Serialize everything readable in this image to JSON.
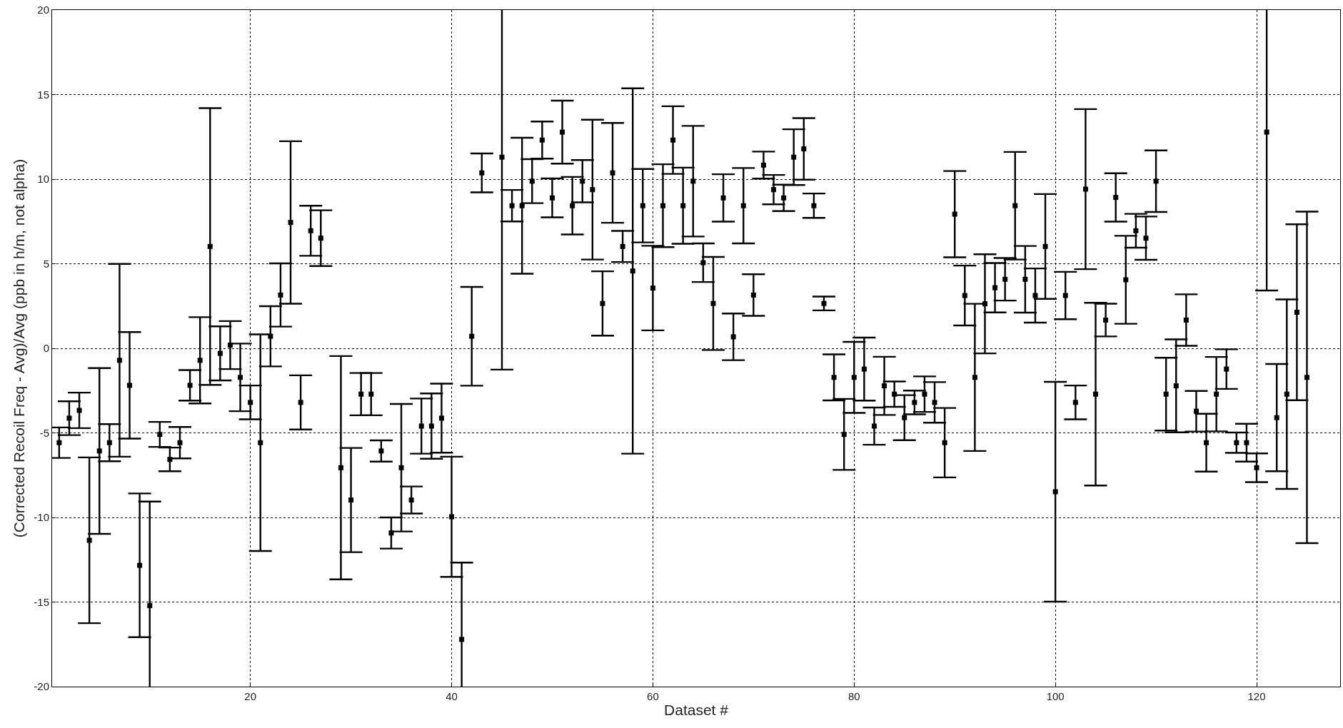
{
  "chart_data": {
    "type": "scatter",
    "xlabel": "Dataset #",
    "ylabel": "(Corrected Recoil Freq - Avg)/Avg (ppb in h/m, not alpha)",
    "x": [
      1,
      2,
      3,
      4,
      5,
      6,
      7,
      8,
      9,
      10,
      11,
      12,
      13,
      14,
      15,
      16,
      17,
      18,
      19,
      20,
      21,
      22,
      23,
      24,
      25,
      26,
      27,
      28,
      29,
      30,
      31,
      32,
      33,
      34,
      35,
      36,
      37,
      38,
      39,
      40,
      41,
      42,
      43,
      44,
      45,
      46,
      47,
      48,
      49,
      50,
      51,
      52,
      53,
      54,
      55,
      56,
      57,
      58,
      59,
      60,
      61,
      62,
      63,
      64,
      65,
      66,
      67,
      68,
      69,
      70,
      71,
      72,
      73,
      74,
      75,
      76,
      77,
      78,
      79,
      80,
      81,
      82,
      83,
      84,
      85,
      86,
      87,
      88,
      89,
      90,
      91,
      92,
      93,
      94,
      95,
      96,
      97,
      98,
      99,
      100,
      101,
      102,
      103,
      104,
      105,
      106,
      107,
      108,
      109,
      110,
      111,
      112,
      113,
      114,
      115,
      116,
      117,
      118,
      119,
      120,
      121,
      122,
      123,
      124,
      125
    ],
    "values": [
      -5.58,
      -4.13,
      -3.67,
      -11.35,
      -6.07,
      -5.58,
      -0.71,
      -2.19,
      -12.83,
      -15.21,
      -5.09,
      -6.57,
      -5.58,
      -2.19,
      -0.71,
      6.02,
      -0.3,
      0.19,
      -1.72,
      -3.2,
      -5.58,
      0.71,
      3.15,
      7.44,
      -3.2,
      6.95,
      6.51,
      null,
      -7.06,
      -8.97,
      -2.71,
      -2.71,
      -6.07,
      -10.92,
      -7.06,
      -8.97,
      -4.6,
      -4.6,
      -4.13,
      -9.96,
      -17.21,
      0.71,
      10.37,
      null,
      11.3,
      8.43,
      8.43,
      9.88,
      12.31,
      8.89,
      12.78,
      8.43,
      9.88,
      9.38,
      2.65,
      10.37,
      6.02,
      4.57,
      8.43,
      3.56,
      8.43,
      12.31,
      8.43,
      9.88,
      5.06,
      2.65,
      8.89,
      0.68,
      8.43,
      3.15,
      10.83,
      9.38,
      8.89,
      11.3,
      11.79,
      8.43,
      2.65,
      -1.72,
      -5.09,
      -1.72,
      -1.23,
      -4.6,
      -2.22,
      -2.71,
      -4.1,
      -3.2,
      -2.71,
      -3.2,
      -5.58,
      7.93,
      3.12,
      -1.72,
      2.63,
      3.58,
      4.08,
      8.43,
      4.08,
      3.12,
      6.02,
      -8.48,
      3.12,
      -3.2,
      9.41,
      -2.71,
      1.67,
      8.92,
      4.05,
      6.95,
      6.51,
      9.88,
      -2.71,
      -2.22,
      1.67,
      -3.72,
      -5.58,
      -2.71,
      -1.23,
      -5.58,
      -5.58,
      -7.06,
      12.78,
      -4.1,
      -2.71,
      2.13,
      -1.72
    ],
    "errors": [
      0.9,
      1.0,
      1.05,
      4.9,
      4.9,
      1.1,
      5.7,
      3.15,
      4.25,
      6.15,
      0.74,
      0.7,
      0.93,
      0.9,
      2.55,
      8.18,
      1.6,
      1.42,
      2.0,
      1.0,
      6.4,
      1.78,
      1.87,
      4.8,
      1.6,
      1.48,
      1.65,
      null,
      6.6,
      3.08,
      1.25,
      1.25,
      0.63,
      0.92,
      3.77,
      0.8,
      1.63,
      1.93,
      2.04,
      3.55,
      4.54,
      2.92,
      1.15,
      null,
      12.56,
      0.93,
      4.02,
      1.3,
      1.1,
      1.15,
      1.86,
      1.7,
      1.25,
      4.13,
      1.9,
      2.95,
      0.92,
      10.8,
      2.17,
      2.5,
      2.45,
      2.0,
      2.25,
      3.27,
      1.14,
      2.75,
      1.4,
      1.38,
      2.23,
      1.23,
      0.8,
      0.87,
      0.78,
      1.65,
      1.82,
      0.72,
      0.41,
      1.36,
      2.1,
      2.1,
      1.86,
      1.1,
      1.72,
      0.75,
      1.33,
      0.7,
      1.05,
      1.2,
      2.05,
      2.55,
      1.77,
      4.35,
      2.93,
      1.46,
      1.26,
      3.18,
      1.97,
      1.6,
      3.1,
      6.5,
      1.4,
      1.0,
      4.73,
      5.4,
      0.97,
      1.43,
      2.6,
      1.0,
      1.28,
      1.82,
      2.15,
      2.75,
      1.52,
      1.2,
      1.71,
      2.2,
      1.17,
      0.6,
      1.12,
      0.85,
      9.36,
      3.17,
      5.6,
      5.2,
      9.8
    ],
    "color": "#000000",
    "marker": "square",
    "xlim": [
      0.3,
      128.3
    ],
    "xticks": [
      20,
      40,
      60,
      80,
      100,
      120
    ],
    "ylim": [
      -20,
      20
    ],
    "yticks": [
      -20,
      -15,
      -10,
      -5,
      0,
      5,
      10,
      15,
      20
    ],
    "grid": true
  }
}
